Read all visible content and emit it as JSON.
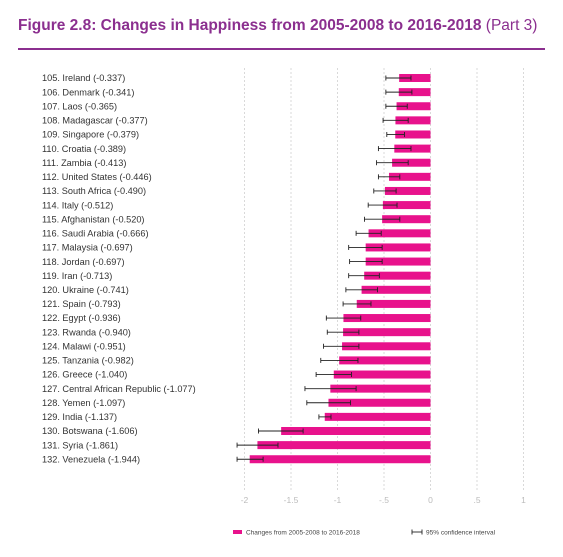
{
  "header": {
    "title": "Figure 2.8: Changes in Happiness from 2005-2008 to 2016-2018",
    "part": "(Part 3)"
  },
  "colors": {
    "title": "#8b2f8f",
    "bar": "#e8128c",
    "grid": "#d9d9d9",
    "error": "#222222"
  },
  "chart_data": {
    "type": "bar",
    "orientation": "horizontal",
    "categories": [
      "105. Ireland (-0.337)",
      "106. Denmark (-0.341)",
      "107. Laos (-0.365)",
      "108. Madagascar (-0.377)",
      "109. Singapore (-0.379)",
      "110. Croatia (-0.389)",
      "111. Zambia (-0.413)",
      "112. United States (-0.446)",
      "113. South Africa (-0.490)",
      "114. Italy (-0.512)",
      "115. Afghanistan (-0.520)",
      "116. Saudi Arabia (-0.666)",
      "117. Malaysia (-0.697)",
      "118. Jordan (-0.697)",
      "119. Iran (-0.713)",
      "120. Ukraine (-0.741)",
      "121. Spain (-0.793)",
      "122. Egypt (-0.936)",
      "123. Rwanda (-0.940)",
      "124. Malawi (-0.951)",
      "125. Tanzania (-0.982)",
      "126. Greece (-1.040)",
      "127. Central African Republic (-1.077)",
      "128. Yemen (-1.097)",
      "129. India (-1.137)",
      "130. Botswana (-1.606)",
      "131. Syria (-1.861)",
      "132. Venezuela (-1.944)"
    ],
    "series": [
      {
        "name": "Changes from 2005-2008 to 2016-2018",
        "values": [
          -0.337,
          -0.341,
          -0.365,
          -0.377,
          -0.379,
          -0.389,
          -0.413,
          -0.446,
          -0.49,
          -0.512,
          -0.52,
          -0.666,
          -0.697,
          -0.697,
          -0.713,
          -0.741,
          -0.793,
          -0.936,
          -0.94,
          -0.951,
          -0.982,
          -1.04,
          -1.077,
          -1.097,
          -1.137,
          -1.606,
          -1.861,
          -1.944
        ]
      }
    ],
    "error_interval": {
      "name": "95% confidence interval",
      "low": [
        -0.48,
        -0.48,
        -0.48,
        -0.51,
        -0.47,
        -0.56,
        -0.58,
        -0.56,
        -0.61,
        -0.67,
        -0.71,
        -0.8,
        -0.88,
        -0.87,
        -0.88,
        -0.91,
        -0.94,
        -1.12,
        -1.11,
        -1.15,
        -1.18,
        -1.23,
        -1.35,
        -1.33,
        -1.2,
        -1.85,
        -2.08,
        -2.08
      ],
      "high": [
        -0.21,
        -0.2,
        -0.25,
        -0.24,
        -0.28,
        -0.21,
        -0.24,
        -0.33,
        -0.37,
        -0.36,
        -0.33,
        -0.53,
        -0.52,
        -0.52,
        -0.55,
        -0.57,
        -0.64,
        -0.75,
        -0.77,
        -0.77,
        -0.78,
        -0.85,
        -0.8,
        -0.86,
        -1.07,
        -1.37,
        -1.64,
        -1.8
      ]
    },
    "xlim": [
      -2.1,
      1.1
    ],
    "xticks": [
      -2,
      -1.5,
      -1,
      -0.5,
      0,
      0.5,
      1
    ],
    "xtick_labels": [
      "-2",
      "-1.5",
      "-1",
      "-.5",
      "0",
      ".5",
      "1"
    ],
    "grid": true,
    "legend_position": "bottom",
    "legend": [
      "Changes from 2005-2008 to 2016-2018",
      "95% confidence interval"
    ]
  }
}
